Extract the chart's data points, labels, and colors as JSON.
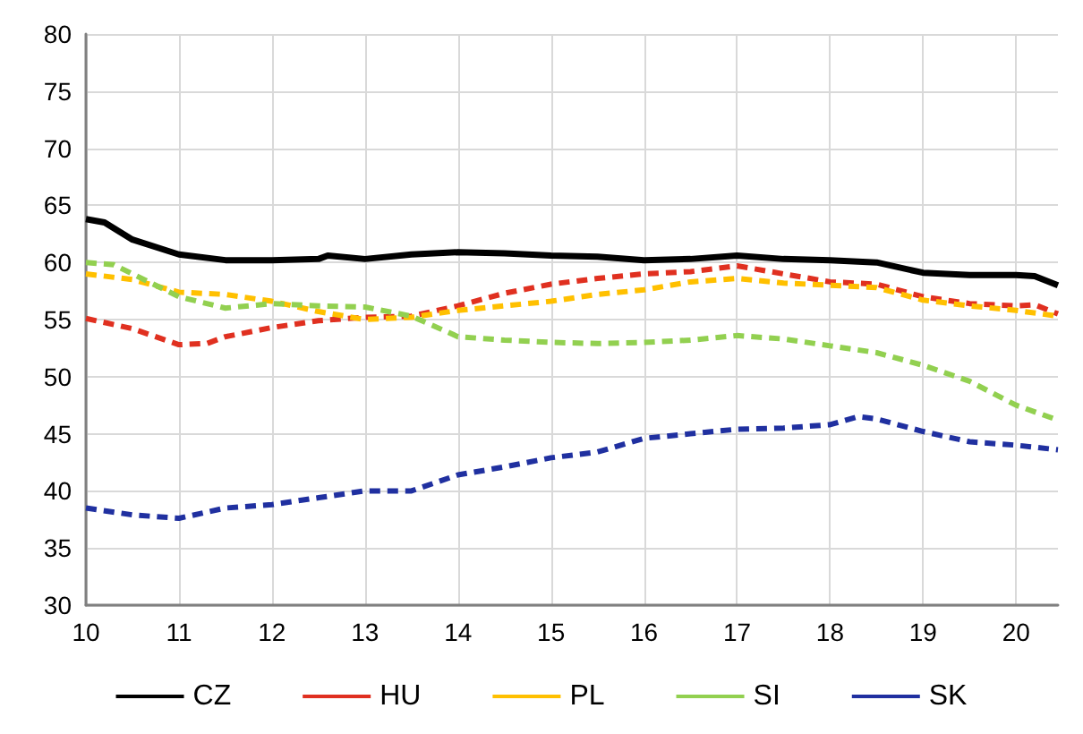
{
  "chart_data": {
    "type": "line",
    "xlim": [
      10,
      20.45
    ],
    "xticks": [
      10,
      11,
      12,
      13,
      14,
      15,
      16,
      17,
      18,
      19,
      20
    ],
    "ylim": [
      30,
      80
    ],
    "yticks": [
      30,
      35,
      40,
      45,
      50,
      55,
      60,
      65,
      70,
      75,
      80
    ],
    "grid": true,
    "legend": "bottom",
    "marker": "none",
    "series": [
      {
        "name": "CZ",
        "color": "#000000",
        "line_style": "solid",
        "x": [
          10,
          10.2,
          10.5,
          11,
          11.5,
          12,
          12.5,
          12.6,
          13,
          13.5,
          14,
          14.5,
          15,
          15.5,
          16,
          16.5,
          17,
          17.5,
          18,
          18.5,
          19,
          19.5,
          20,
          20.2,
          20.45
        ],
        "values": [
          63.8,
          63.5,
          62,
          60.7,
          60.2,
          60.2,
          60.3,
          60.6,
          60.3,
          60.7,
          60.9,
          60.8,
          60.6,
          60.5,
          60.2,
          60.3,
          60.6,
          60.3,
          60.2,
          60,
          59.1,
          58.9,
          58.9,
          58.8,
          58
        ]
      },
      {
        "name": "HU",
        "color": "#e03020",
        "line_style": "dashed",
        "x": [
          10,
          10.5,
          11,
          11.3,
          11.5,
          12,
          12.5,
          13,
          13.5,
          14,
          14.5,
          15,
          15.5,
          16,
          16.5,
          17,
          17.5,
          18,
          18.5,
          19,
          19.5,
          20,
          20.2,
          20.45
        ],
        "values": [
          55.1,
          54.2,
          52.8,
          52.9,
          53.5,
          54.3,
          54.9,
          55.2,
          55.3,
          56.2,
          57.3,
          58.1,
          58.6,
          59,
          59.2,
          59.7,
          59,
          58.3,
          58.1,
          57,
          56.4,
          56.2,
          56.3,
          55.5
        ]
      },
      {
        "name": "PL",
        "color": "#ffc000",
        "line_style": "dashed",
        "x": [
          10,
          10.5,
          11,
          11.5,
          12,
          12.5,
          13,
          13.5,
          14,
          14.5,
          15,
          15.5,
          16,
          16.5,
          17,
          17.5,
          18,
          18.5,
          19,
          19.5,
          20,
          20.45
        ],
        "values": [
          59,
          58.5,
          57.4,
          57.2,
          56.6,
          55.7,
          55,
          55.2,
          55.8,
          56.2,
          56.6,
          57.2,
          57.6,
          58.3,
          58.6,
          58.2,
          58,
          57.8,
          56.7,
          56.2,
          55.8,
          55.3
        ]
      },
      {
        "name": "SI",
        "color": "#92d050",
        "line_style": "dashed",
        "x": [
          10,
          10.3,
          10.7,
          11,
          11.5,
          12,
          12.5,
          13,
          13.5,
          14,
          14.5,
          15,
          15.5,
          16,
          16.5,
          17,
          17.5,
          18,
          18.5,
          19,
          19.5,
          20,
          20.45
        ],
        "values": [
          60,
          59.8,
          58.2,
          57,
          56,
          56.4,
          56.2,
          56.1,
          55.3,
          53.5,
          53.2,
          53,
          52.9,
          53,
          53.2,
          53.6,
          53.3,
          52.7,
          52.1,
          51,
          49.6,
          47.5,
          46.2
        ]
      },
      {
        "name": "SK",
        "color": "#2030a0",
        "line_style": "dashed",
        "x": [
          10,
          10.5,
          11,
          11.5,
          12,
          12.5,
          13,
          13.5,
          14,
          14.5,
          15,
          15.5,
          16,
          16.5,
          17,
          17.5,
          18,
          18.3,
          18.5,
          19,
          19.5,
          20,
          20.45
        ],
        "values": [
          38.5,
          37.9,
          37.6,
          38.5,
          38.8,
          39.4,
          40,
          40,
          41.4,
          42.1,
          42.9,
          43.4,
          44.6,
          45,
          45.4,
          45.5,
          45.8,
          46.5,
          46.3,
          45.2,
          44.3,
          44,
          43.6
        ]
      }
    ]
  }
}
